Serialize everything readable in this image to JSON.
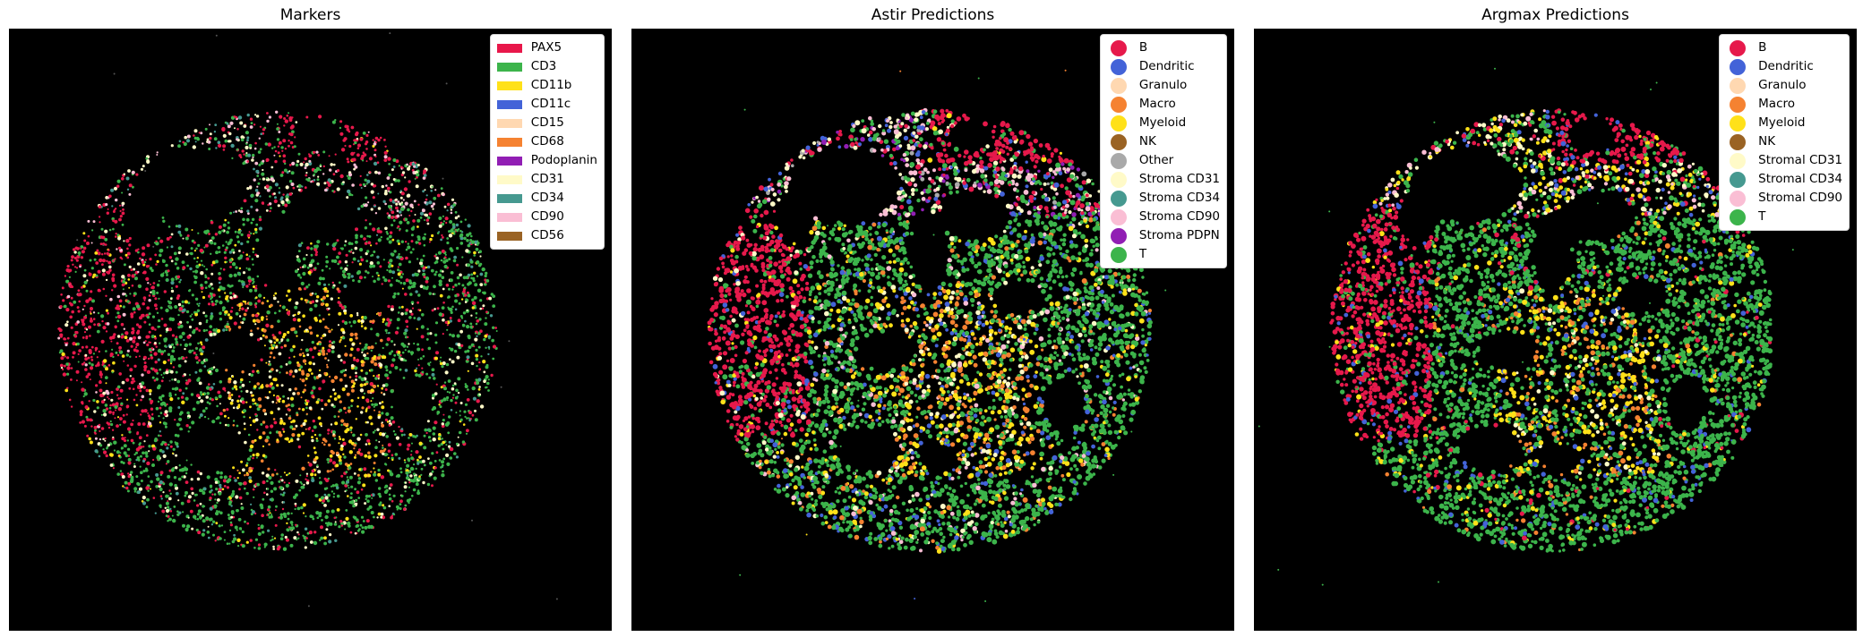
{
  "panels": [
    {
      "id": "markers",
      "title": "Markers",
      "legend_style": "patch",
      "legend": [
        {
          "label": "PAX5",
          "color": "#e8174a"
        },
        {
          "label": "CD3",
          "color": "#3cb44b"
        },
        {
          "label": "CD11b",
          "color": "#ffe119"
        },
        {
          "label": "CD11c",
          "color": "#4363d8"
        },
        {
          "label": "CD15",
          "color": "#ffd8b1"
        },
        {
          "label": "CD68",
          "color": "#f58231"
        },
        {
          "label": "Podoplanin",
          "color": "#911eb4"
        },
        {
          "label": "CD31",
          "color": "#fffac8"
        },
        {
          "label": "CD34",
          "color": "#469990"
        },
        {
          "label": "CD90",
          "color": "#fabed4"
        },
        {
          "label": "CD56",
          "color": "#9a6324"
        }
      ]
    },
    {
      "id": "astir",
      "title": "Astir Predictions",
      "legend_style": "dot",
      "legend": [
        {
          "label": "B",
          "color": "#e6194b"
        },
        {
          "label": "Dendritic",
          "color": "#4363d8"
        },
        {
          "label": "Granulo",
          "color": "#ffd8b1"
        },
        {
          "label": "Macro",
          "color": "#f58231"
        },
        {
          "label": "Myeloid",
          "color": "#ffe119"
        },
        {
          "label": "NK",
          "color": "#9a6324"
        },
        {
          "label": "Other",
          "color": "#a9a9a9"
        },
        {
          "label": "Stroma CD31",
          "color": "#fffac8"
        },
        {
          "label": "Stroma CD34",
          "color": "#469990"
        },
        {
          "label": "Stroma CD90",
          "color": "#fabed4"
        },
        {
          "label": "Stroma PDPN",
          "color": "#911eb4"
        },
        {
          "label": "T",
          "color": "#3cb44b"
        }
      ]
    },
    {
      "id": "argmax",
      "title": "Argmax Predictions",
      "legend_style": "dot",
      "legend": [
        {
          "label": "B",
          "color": "#e6194b"
        },
        {
          "label": "Dendritic",
          "color": "#4363d8"
        },
        {
          "label": "Granulo",
          "color": "#ffd8b1"
        },
        {
          "label": "Macro",
          "color": "#f58231"
        },
        {
          "label": "Myeloid",
          "color": "#ffe119"
        },
        {
          "label": "NK",
          "color": "#9a6324"
        },
        {
          "label": "Stromal CD31",
          "color": "#fffac8"
        },
        {
          "label": "Stromal CD34",
          "color": "#469990"
        },
        {
          "label": "Stromal CD90",
          "color": "#fabed4"
        },
        {
          "label": "T",
          "color": "#3cb44b"
        }
      ]
    }
  ]
}
